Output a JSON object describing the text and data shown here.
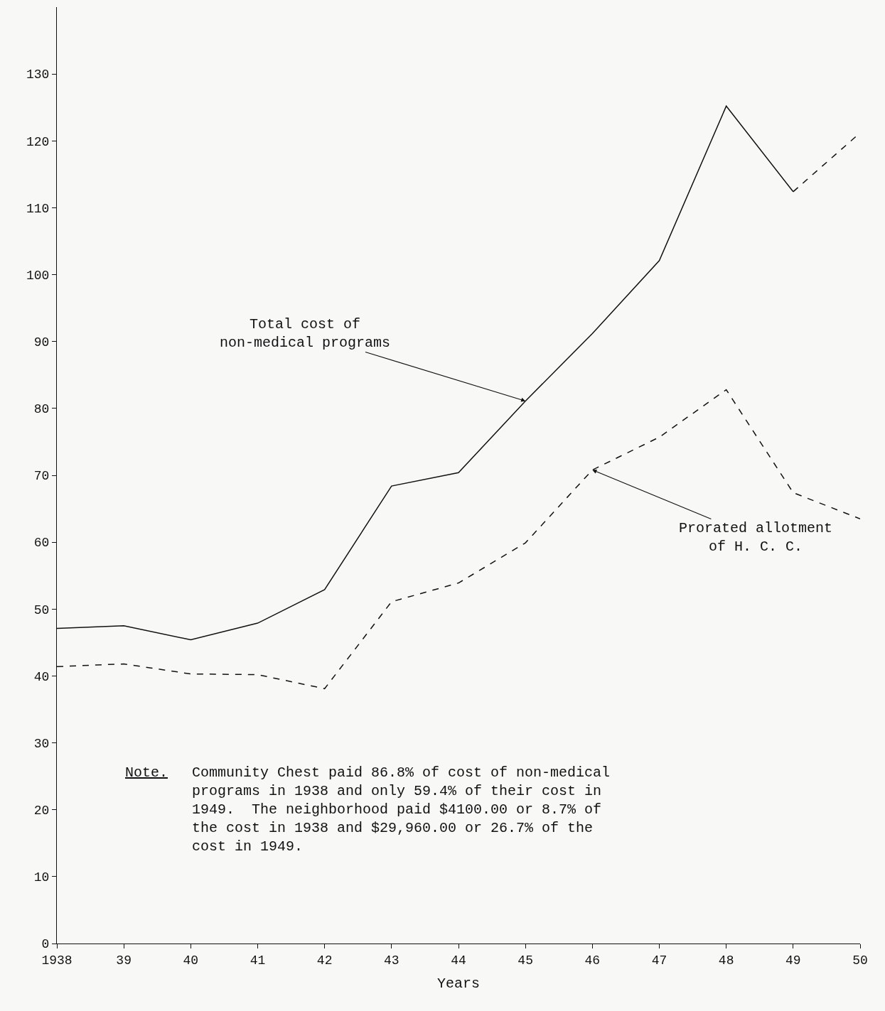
{
  "chart_data": {
    "type": "line",
    "xlabel": "Years",
    "x": [
      1938,
      1939,
      1940,
      1941,
      1942,
      1943,
      1944,
      1945,
      1946,
      1947,
      1948,
      1949,
      1950
    ],
    "series": [
      {
        "name": "Total cost of non-medical programs",
        "color": "#111111",
        "line_style": "solid",
        "values": [
          47.1,
          47.5,
          45.4,
          47.9,
          52.9,
          68.4,
          70.4,
          81.1,
          91.2,
          102.1,
          125.2,
          112.4,
          null
        ]
      },
      {
        "color": "#111111",
        "line_style": "dashed",
        "x": [
          1949,
          1950
        ],
        "values": [
          112.4,
          121.2
        ]
      },
      {
        "name": "Prorated allotment of H. C. C.",
        "color": "#111111",
        "line_style": "dashed",
        "values": [
          41.4,
          41.8,
          40.3,
          40.2,
          38.1,
          51.1,
          53.9,
          59.9,
          70.8,
          75.7,
          82.8,
          67.4,
          63.5
        ]
      }
    ],
    "annotations": [
      "Note.",
      "Community Chest paid 86.8% of cost of non-medical\nprograms in 1938 and only 59.4% of their cost in\n1949.  The neighborhood paid $4100.00 or 8.7% of\nthe cost in 1938 and $29,960.00 or 26.7% of the\ncost in 1949."
    ],
    "xlim": [
      1938,
      1950
    ],
    "xticks": [
      1938,
      {
        "value": 1939,
        "label": "39"
      },
      {
        "value": 1940,
        "label": "40"
      },
      {
        "value": 1941,
        "label": "41"
      },
      {
        "value": 1942,
        "label": "42"
      },
      {
        "value": 1943,
        "label": "43"
      },
      {
        "value": 1944,
        "label": "44"
      },
      {
        "value": 1945,
        "label": "45"
      },
      {
        "value": 1946,
        "label": "46"
      },
      {
        "value": 1947,
        "label": "47"
      },
      {
        "value": 1948,
        "label": "48"
      },
      {
        "value": 1949,
        "label": "49"
      },
      {
        "value": 1950,
        "label": "50"
      }
    ],
    "ylim": [
      0,
      140
    ],
    "yticks": [
      0,
      10,
      20,
      30,
      40,
      50,
      60,
      70,
      80,
      90,
      100,
      110,
      120,
      130
    ],
    "grid": false,
    "legend": false,
    "marker": "none"
  }
}
